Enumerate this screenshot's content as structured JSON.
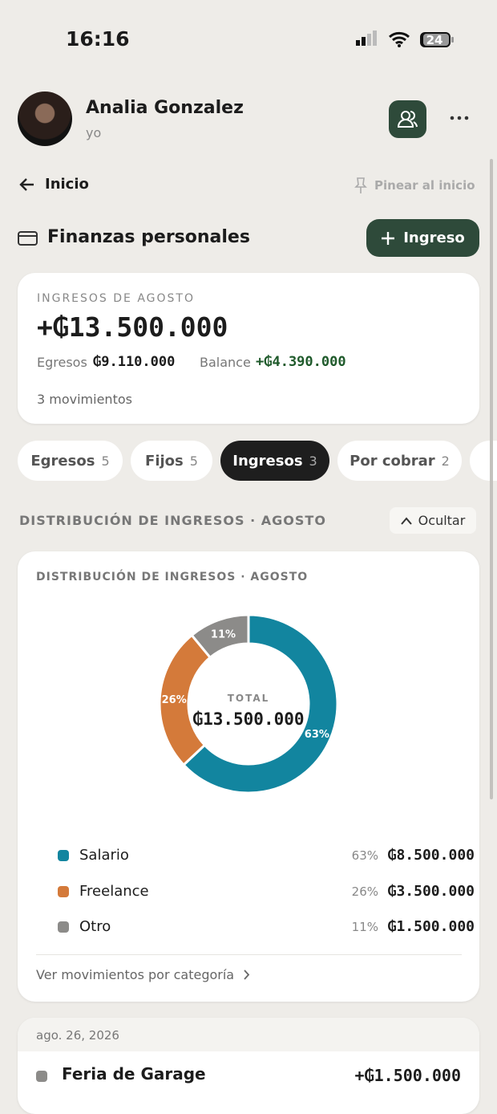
{
  "status_bar": {
    "time": "16:16",
    "battery": "24"
  },
  "profile": {
    "name": "Analia Gonzalez",
    "subtitle": "yo"
  },
  "nav": {
    "back": "Inicio",
    "pin": "Pinear al inicio"
  },
  "section": {
    "title": "Finanzas personales",
    "button": "Ingreso"
  },
  "summary": {
    "label": "INGRESOS DE AGOSTO",
    "amount": "+₲13.500.000",
    "expenses_label": "Egresos",
    "expenses": "₲9.110.000",
    "balance_label": "Balance",
    "balance": "+₲4.390.000",
    "count": "3 movimientos"
  },
  "tabs": [
    {
      "label": "Egresos",
      "count": 5
    },
    {
      "label": "Fijos",
      "count": 5
    },
    {
      "label": "Ingresos",
      "count": 3
    },
    {
      "label": "Por cobrar",
      "count": 2
    }
  ],
  "distribution_header": {
    "title": "DISTRIBUCIÓN DE INGRESOS · AGOSTO",
    "toggle": "Ocultar"
  },
  "chart_data": {
    "type": "pie",
    "donut": true,
    "title": "DISTRIBUCIÓN DE INGRESOS · AGOSTO",
    "center_label": "TOTAL",
    "center_value": "₲13.500.000",
    "categories": [
      "Salario",
      "Freelance",
      "Otro"
    ],
    "values": [
      63,
      26,
      11
    ],
    "value_labels": [
      "63%",
      "26%",
      "11%"
    ],
    "amounts": [
      "₲8.500.000",
      "₲3.500.000",
      "₲1.500.000"
    ],
    "colors": [
      "#12859f",
      "#d47a3a",
      "#8c8b89"
    ]
  },
  "footer_link": "Ver movimientos por categoría",
  "transactions": {
    "date": "ago. 26, 2026",
    "items": [
      {
        "title": "Feria de Garage",
        "amount": "+₲1.500.000"
      }
    ]
  }
}
